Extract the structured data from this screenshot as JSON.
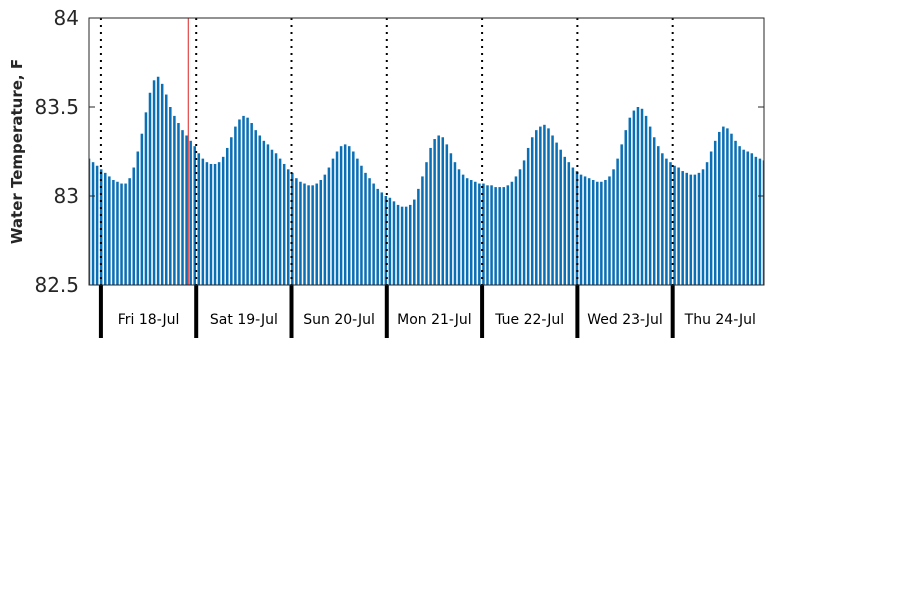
{
  "chart_data": {
    "type": "bar",
    "title": "",
    "xlabel": "",
    "ylabel": "Water Temperature, F",
    "ylim": [
      82.5,
      84
    ],
    "y_ticks": [
      "84",
      "83.5",
      "83",
      "82.5"
    ],
    "y_tick_values": [
      84,
      83.5,
      83,
      82.5
    ],
    "x_start": "2025-07-17 21:00",
    "x_end": "2025-07-24 23:00",
    "bar_interval_hours": 1,
    "current_time": "2025-07-18 22:00",
    "grid": false,
    "legend": "none",
    "day_labels": [
      "Fri 18-Jul",
      "Sat 19-Jul",
      "Sun 20-Jul",
      "Mon 21-Jul",
      "Tue 22-Jul",
      "Wed 23-Jul",
      "Thu 24-Jul"
    ],
    "day_starts": [
      "2025-07-18 00:00",
      "2025-07-19 00:00",
      "2025-07-20 00:00",
      "2025-07-21 00:00",
      "2025-07-22 00:00",
      "2025-07-23 00:00",
      "2025-07-24 00:00"
    ],
    "daily_peaks": [
      83.67,
      83.45,
      83.29,
      83.34,
      83.4,
      83.5,
      83.4
    ],
    "daily_troughs": [
      83.07,
      83.18,
      83.06,
      82.94,
      83.05,
      83.08,
      83.12
    ],
    "values": [
      83.21,
      83.19,
      83.17,
      83.15,
      83.13,
      83.11,
      83.09,
      83.08,
      83.07,
      83.07,
      83.1,
      83.16,
      83.25,
      83.35,
      83.47,
      83.58,
      83.65,
      83.67,
      83.63,
      83.57,
      83.5,
      83.45,
      83.41,
      83.37,
      83.34,
      83.31,
      83.28,
      83.24,
      83.21,
      83.19,
      83.18,
      83.18,
      83.19,
      83.22,
      83.27,
      83.33,
      83.39,
      83.43,
      83.45,
      83.44,
      83.41,
      83.37,
      83.34,
      83.31,
      83.29,
      83.26,
      83.24,
      83.21,
      83.18,
      83.15,
      83.13,
      83.1,
      83.08,
      83.07,
      83.06,
      83.06,
      83.07,
      83.09,
      83.12,
      83.16,
      83.21,
      83.25,
      83.28,
      83.29,
      83.28,
      83.25,
      83.21,
      83.17,
      83.13,
      83.1,
      83.07,
      83.04,
      83.02,
      83.0,
      82.99,
      82.97,
      82.95,
      82.94,
      82.94,
      82.95,
      82.98,
      83.04,
      83.11,
      83.19,
      83.27,
      83.32,
      83.34,
      83.33,
      83.29,
      83.24,
      83.19,
      83.15,
      83.12,
      83.1,
      83.09,
      83.08,
      83.07,
      83.07,
      83.06,
      83.06,
      83.05,
      83.05,
      83.05,
      83.06,
      83.08,
      83.11,
      83.15,
      83.2,
      83.27,
      83.33,
      83.37,
      83.39,
      83.4,
      83.38,
      83.34,
      83.3,
      83.26,
      83.22,
      83.19,
      83.16,
      83.14,
      83.12,
      83.11,
      83.1,
      83.09,
      83.08,
      83.08,
      83.09,
      83.11,
      83.15,
      83.21,
      83.29,
      83.37,
      83.44,
      83.48,
      83.5,
      83.49,
      83.45,
      83.39,
      83.33,
      83.28,
      83.24,
      83.21,
      83.19,
      83.17,
      83.16,
      83.14,
      83.13,
      83.12,
      83.12,
      83.13,
      83.15,
      83.19,
      83.25,
      83.31,
      83.36,
      83.39,
      83.38,
      83.35,
      83.31,
      83.28,
      83.26,
      83.25,
      83.24,
      83.22,
      83.21,
      83.2
    ]
  }
}
